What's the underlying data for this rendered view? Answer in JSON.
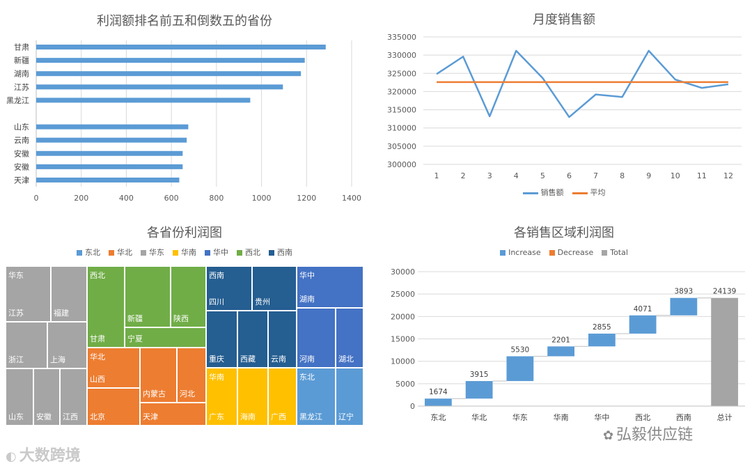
{
  "charts": {
    "profit_bar": {
      "title": "利润额排名前五和倒数五的省份",
      "chart_data": {
        "type": "bar",
        "orientation": "horizontal",
        "categories": [
          "甘肃",
          "新疆",
          "湖南",
          "江苏",
          "黑龙江",
          "",
          "山东",
          "云南",
          "安徽",
          "安徽",
          "天津"
        ],
        "values": [
          1285,
          1192,
          1175,
          1095,
          950,
          null,
          675,
          668,
          650,
          650,
          635
        ],
        "xlim": [
          0,
          1400
        ],
        "xticks": [
          0,
          200,
          400,
          600,
          800,
          1000,
          1200,
          1400
        ],
        "grid": true,
        "color": "#5b9bd5"
      }
    },
    "monthly_sales": {
      "title": "月度销售额",
      "chart_data": {
        "type": "line",
        "x": [
          1,
          2,
          3,
          4,
          5,
          6,
          7,
          8,
          9,
          10,
          11,
          12
        ],
        "series": [
          {
            "name": "销售额",
            "color": "#5b9bd5",
            "values": [
              324800,
              329600,
              313200,
              331200,
              323700,
              313000,
              319200,
              318500,
              331200,
              323300,
              321000,
              322000
            ]
          },
          {
            "name": "平均",
            "color": "#ed7d31",
            "values": [
              322600,
              322600,
              322600,
              322600,
              322600,
              322600,
              322600,
              322600,
              322600,
              322600,
              322600,
              322600
            ]
          }
        ],
        "ylim": [
          300000,
          335000
        ],
        "yticks": [
          300000,
          305000,
          310000,
          315000,
          320000,
          325000,
          330000,
          335000
        ],
        "grid": true,
        "legend": "bottom"
      }
    },
    "province_treemap": {
      "title": "各省份利润图",
      "chart_data": {
        "type": "treemap",
        "legend": "top",
        "groups": [
          {
            "name": "东北",
            "color": "#5b9bd5"
          },
          {
            "name": "华北",
            "color": "#ed7d31"
          },
          {
            "name": "华东",
            "color": "#a5a5a5"
          },
          {
            "name": "华南",
            "color": "#ffc000"
          },
          {
            "name": "华中",
            "color": "#4472c4"
          },
          {
            "name": "西北",
            "color": "#70ad47"
          },
          {
            "name": "西南",
            "color": "#255e91"
          }
        ],
        "cells": [
          {
            "group": "华东",
            "label": "江苏",
            "show_group": true
          },
          {
            "group": "华东",
            "label": "福建"
          },
          {
            "group": "华东",
            "label": "浙江"
          },
          {
            "group": "华东",
            "label": "上海"
          },
          {
            "group": "华东",
            "label": "山东"
          },
          {
            "group": "华东",
            "label": "安徽"
          },
          {
            "group": "华东",
            "label": "江西"
          },
          {
            "group": "西北",
            "label": "甘肃",
            "show_group": true
          },
          {
            "group": "西北",
            "label": "新疆"
          },
          {
            "group": "西北",
            "label": "陕西"
          },
          {
            "group": "西北",
            "label": "宁夏"
          },
          {
            "group": "华北",
            "label": "山西",
            "show_group": true
          },
          {
            "group": "华北",
            "label": "北京"
          },
          {
            "group": "华北",
            "label": "内蒙古"
          },
          {
            "group": "华北",
            "label": "河北"
          },
          {
            "group": "华北",
            "label": "天津"
          },
          {
            "group": "西南",
            "label": "四川",
            "show_group": true
          },
          {
            "group": "西南",
            "label": "贵州"
          },
          {
            "group": "西南",
            "label": "重庆"
          },
          {
            "group": "西南",
            "label": "西藏"
          },
          {
            "group": "西南",
            "label": "云南"
          },
          {
            "group": "华南",
            "label": "广东",
            "show_group": true
          },
          {
            "group": "华南",
            "label": "海南"
          },
          {
            "group": "华南",
            "label": "广西"
          },
          {
            "group": "华中",
            "label": "湖南",
            "show_group": true
          },
          {
            "group": "华中",
            "label": "河南"
          },
          {
            "group": "华中",
            "label": "湖北"
          },
          {
            "group": "东北",
            "label": "黑龙江",
            "show_group": true
          },
          {
            "group": "东北",
            "label": "辽宁"
          }
        ]
      }
    },
    "region_waterfall": {
      "title": "各销售区域利润图",
      "legend_items": [
        {
          "name": "Increase",
          "color": "#5b9bd5"
        },
        {
          "name": "Decrease",
          "color": "#ed7d31"
        },
        {
          "name": "Total",
          "color": "#a5a5a5"
        }
      ],
      "chart_data": {
        "type": "waterfall",
        "categories": [
          "东北",
          "华北",
          "华东",
          "华南",
          "华中",
          "西北",
          "西南",
          "总计"
        ],
        "values": [
          1674,
          3915,
          5530,
          2201,
          2855,
          4071,
          3893,
          24139
        ],
        "kinds": [
          "increase",
          "increase",
          "increase",
          "increase",
          "increase",
          "increase",
          "increase",
          "total"
        ],
        "data_labels": [
          "1674",
          "3915",
          "5530",
          "2201",
          "2855",
          "4071",
          "3893",
          "24139"
        ],
        "ylim": [
          0,
          30000
        ],
        "yticks": [
          0,
          5000,
          10000,
          15000,
          20000,
          25000,
          30000
        ],
        "grid": true,
        "legend": "top"
      }
    }
  },
  "watermarks": {
    "left": "大数跨境",
    "right": "弘毅供应链"
  }
}
